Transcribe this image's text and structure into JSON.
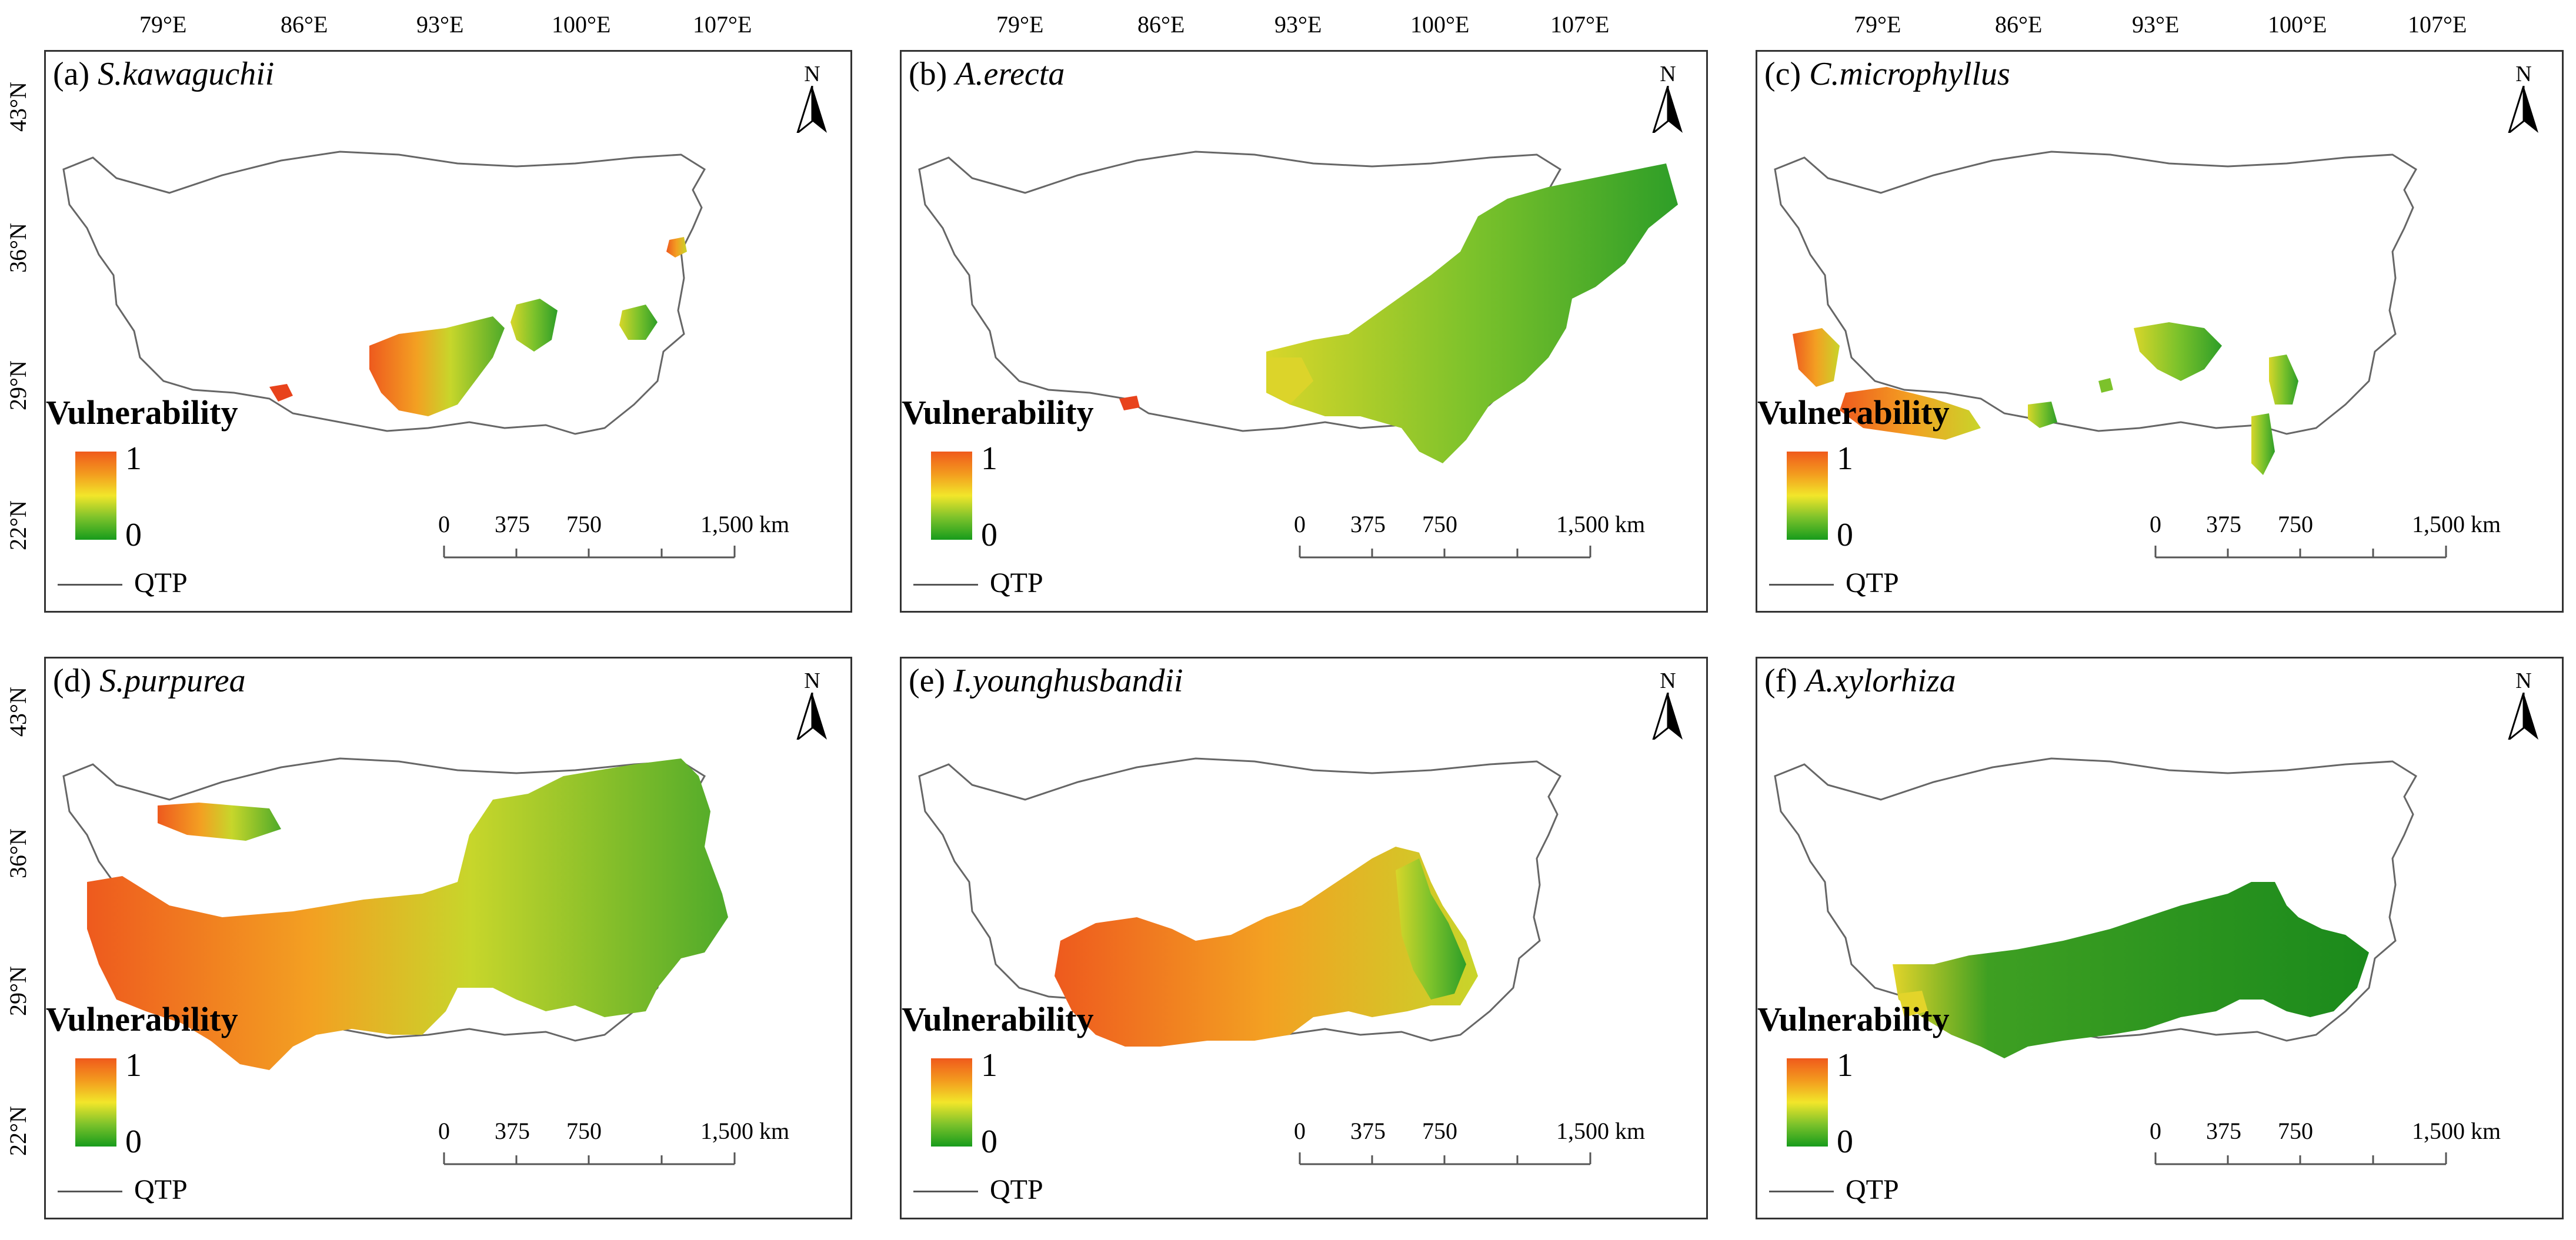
{
  "lon_labels": [
    "79°E",
    "86°E",
    "93°E",
    "100°E",
    "107°E"
  ],
  "lat_labels": [
    "43°N",
    "36°N",
    "29°N",
    "22°N"
  ],
  "legend": {
    "title": "Vulnerability",
    "max": "1",
    "min": "0",
    "outline_label": "QTP",
    "colors": {
      "high": "#f05a1c",
      "mid": "#f2e62a",
      "low": "#179c1c"
    }
  },
  "scale_bar": {
    "ticks": [
      "0",
      "375",
      "750",
      "1,500 km"
    ]
  },
  "north_label": "N",
  "panels": [
    {
      "letter": "(a)",
      "species": "S.kawaguchii"
    },
    {
      "letter": "(b)",
      "species": "A.erecta"
    },
    {
      "letter": "(c)",
      "species": "C.microphyllus"
    },
    {
      "letter": "(d)",
      "species": "S.purpurea"
    },
    {
      "letter": "(e)",
      "species": "I.younghusbandii"
    },
    {
      "letter": "(f)",
      "species": "A.xylorhiza"
    }
  ]
}
